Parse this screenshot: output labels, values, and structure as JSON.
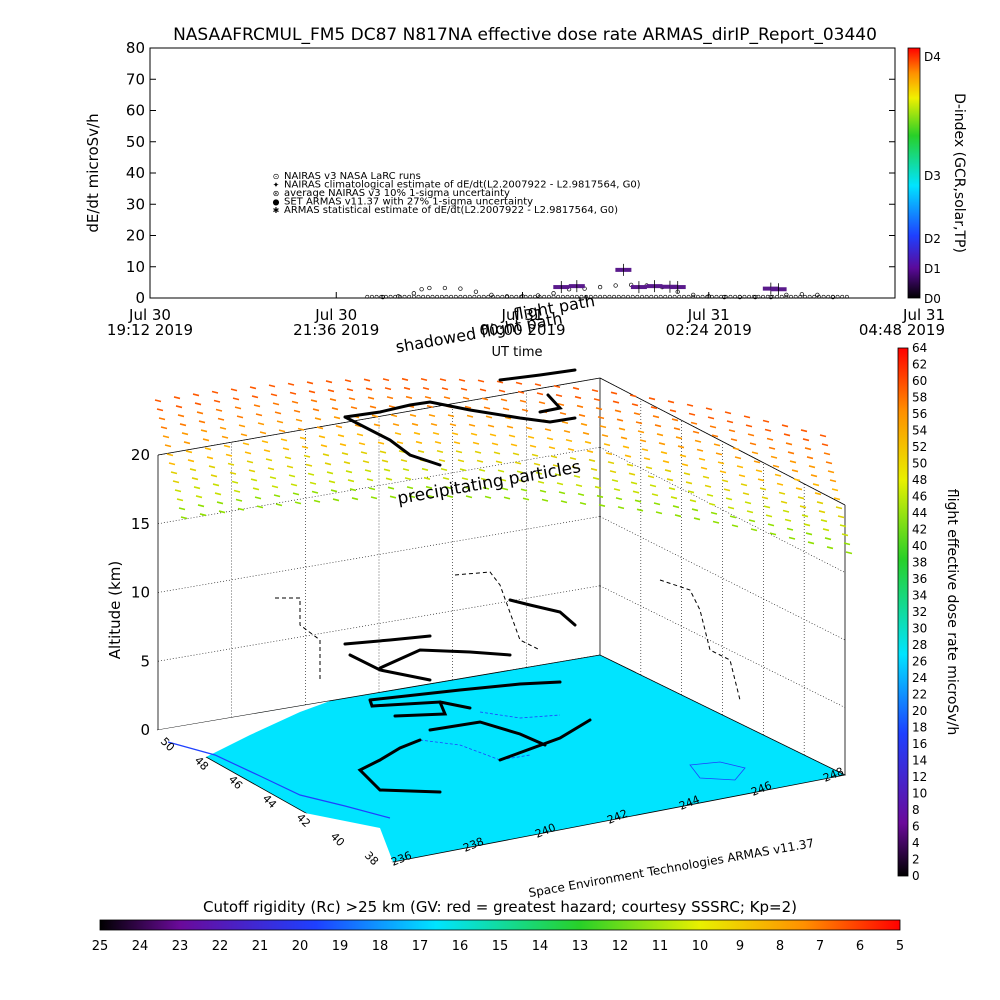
{
  "title": "NASAAFRCMUL_FM5 DC87 N817NA effective dose rate ARMAS_dirIP_Report_03440",
  "top_chart": {
    "chart_data": {
      "type": "scatter",
      "ylabel": "dE/dt microSv/h",
      "xlabel": "UT time",
      "ylim": [
        0,
        80
      ],
      "yticks": [
        "0",
        "10",
        "20",
        "30",
        "40",
        "50",
        "60",
        "70",
        "80"
      ],
      "xticks": [
        {
          "l1": "Jul 30",
          "l2": "19:12 2019"
        },
        {
          "l1": "Jul 30",
          "l2": "21:36 2019"
        },
        {
          "l1": "Jul 31",
          "l2": "00:00 2019"
        },
        {
          "l1": "Jul 31",
          "l2": "02:24 2019"
        },
        {
          "l1": "Jul 31",
          "l2": "04:48 2019"
        }
      ],
      "xlim_hours": [
        0,
        9.6
      ],
      "legend": [
        "NAIRAS v3 NASA LaRC runs",
        "NAIRAS climatological estimate of dE/dt(L2.2007922 - L2.9817564, G0)",
        "average NAIRAS v3 10% 1-sigma uncertainty",
        "SET ARMAS v11.37 with 27% 1-sigma uncertainty",
        "ARMAS statistical estimate of dE/dt(L2.2007922 - L2.9817564, G0)"
      ],
      "series": [
        {
          "name": "NAIRAS v3 NASA LaRC runs",
          "x": [
            3.0,
            3.2,
            3.4,
            3.5,
            3.6,
            3.8,
            4.0,
            4.2,
            4.4,
            4.6,
            4.8,
            5.0,
            5.2,
            5.4,
            5.6,
            5.8,
            6.0,
            6.2,
            6.4,
            6.6,
            6.8,
            7.0,
            7.2,
            7.4,
            7.6,
            7.8,
            8.0,
            8.2,
            8.4,
            8.6,
            8.8
          ],
          "y": [
            0.3,
            0.5,
            1.5,
            2.8,
            3.2,
            3.2,
            3.0,
            2.0,
            1.0,
            0.5,
            0.5,
            0.8,
            1.5,
            2.8,
            3.0,
            3.5,
            4.0,
            4.2,
            4.0,
            3.5,
            2.0,
            1.0,
            0.5,
            0.3,
            0.3,
            0.3,
            0.3,
            1.0,
            1.2,
            1.0,
            0.3
          ]
        },
        {
          "name": "SET ARMAS v11.37 with 27% 1-sigma uncertainty",
          "x": [
            5.3,
            5.5,
            6.1,
            6.3,
            6.5,
            6.7,
            6.8,
            8.0,
            8.1
          ],
          "y": [
            3.5,
            3.8,
            9.0,
            3.5,
            3.8,
            3.6,
            3.5,
            3.0,
            2.8
          ]
        }
      ],
      "colorbar": {
        "label": "D-index (GCR,solar,TP)",
        "ticks": [
          "D0",
          "D1",
          "D2",
          "D3",
          "D4"
        ]
      }
    }
  },
  "annotations": {
    "shadowed": "shadowed flight path",
    "flight": "flight path",
    "precip": "precipitating particles"
  },
  "bottom_chart": {
    "chart_data": {
      "type": "scatter",
      "zlabel": "Altitude (km)",
      "zticks": [
        "0",
        "5",
        "10",
        "15",
        "20"
      ],
      "latticks": [
        "50",
        "48",
        "46",
        "44",
        "42",
        "40",
        "38"
      ],
      "lonticks": [
        "236",
        "238",
        "240",
        "242",
        "244",
        "246",
        "248"
      ],
      "credit": "Space Environment Technologies ARMAS v11.37",
      "right_colorbar": {
        "label": "flight effective dose rate microSv/h",
        "ticks": [
          "0",
          "2",
          "4",
          "6",
          "8",
          "10",
          "12",
          "14",
          "16",
          "18",
          "20",
          "22",
          "24",
          "26",
          "28",
          "30",
          "32",
          "34",
          "36",
          "38",
          "40",
          "42",
          "44",
          "46",
          "48",
          "50",
          "52",
          "54",
          "56",
          "58",
          "60",
          "62",
          "64"
        ]
      }
    }
  },
  "bottom_colorbar": {
    "title": "Cutoff rigidity (Rc) >25 km (GV: red = greatest hazard; courtesy SSSRC; Kp=2)",
    "ticks": [
      "25",
      "24",
      "23",
      "22",
      "21",
      "20",
      "19",
      "18",
      "17",
      "16",
      "15",
      "14",
      "13",
      "12",
      "11",
      "10",
      "9",
      "8",
      "7",
      "6",
      "5"
    ]
  },
  "colors": {
    "ocean": "#00e4ff",
    "land": "#ffffff",
    "flight": "#000000",
    "armas": "#5a1a8c"
  }
}
